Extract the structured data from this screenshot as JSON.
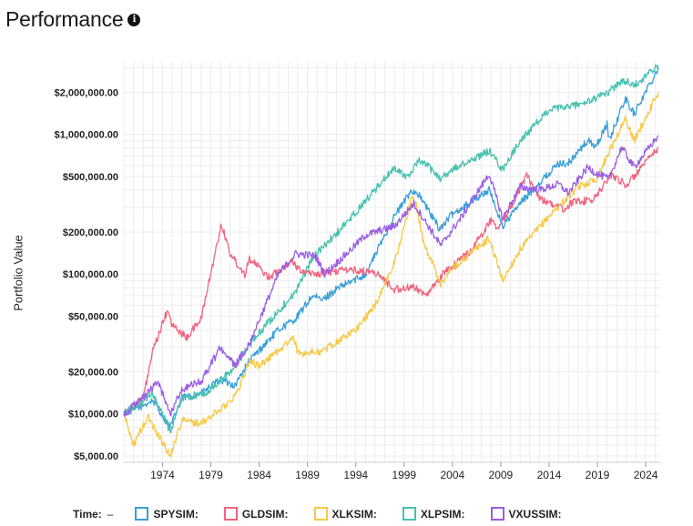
{
  "header": {
    "title": "Performance",
    "info_icon": "info-icon"
  },
  "legend": {
    "time_label": "Time:",
    "time_value": "–"
  },
  "chart_data": {
    "type": "line",
    "ylabel": "Portfolio Value",
    "yscale": "log",
    "ylim": [
      4500,
      3300000
    ],
    "xlim": [
      1970.0,
      2025.5
    ],
    "y_ticks": [
      {
        "value": 5000,
        "label": "$5,000.00"
      },
      {
        "value": 10000,
        "label": "$10,000.00"
      },
      {
        "value": 20000,
        "label": "$20,000.00"
      },
      {
        "value": 50000,
        "label": "$50,000.00"
      },
      {
        "value": 100000,
        "label": "$100,000.00"
      },
      {
        "value": 200000,
        "label": "$200,000.00"
      },
      {
        "value": 500000,
        "label": "$500,000.00"
      },
      {
        "value": 1000000,
        "label": "$1,000,000.00"
      },
      {
        "value": 2000000,
        "label": "$2,000,000.00"
      }
    ],
    "x_ticks": [
      1974,
      1979,
      1984,
      1989,
      1994,
      1999,
      2004,
      2009,
      2014,
      2019,
      2024
    ],
    "grid": true,
    "legend_position": "bottom",
    "series": [
      {
        "name": "SPYSIM:",
        "color": "#3a9fd8",
        "x": [
          1970,
          1972,
          1973,
          1974.8,
          1976,
          1978,
          1980,
          1981.5,
          1983,
          1986,
          1987.8,
          1989.5,
          1990.5,
          1992,
          1995,
          1998,
          1999.8,
          2000.5,
          2002.7,
          2004,
          2007.8,
          2009.2,
          2011,
          2013,
          2015,
          2016,
          2018,
          2018.9,
          2020,
          2020.2,
          2021.9,
          2022.8,
          2025.3
        ],
        "y": [
          10000,
          11500,
          12500,
          8000,
          13000,
          14000,
          17500,
          16000,
          24000,
          40000,
          48000,
          70000,
          65000,
          78000,
          100000,
          260000,
          400000,
          370000,
          210000,
          270000,
          400000,
          220000,
          320000,
          450000,
          620000,
          620000,
          900000,
          820000,
          1200000,
          900000,
          1800000,
          1400000,
          3000000
        ]
      },
      {
        "name": "GLDSIM:",
        "color": "#f0657f",
        "x": [
          1970,
          1972,
          1973,
          1974.5,
          1975,
          1976.5,
          1978,
          1980.1,
          1981,
          1982.5,
          1983,
          1985,
          1987.5,
          1988,
          1990,
          1993,
          1996,
          1998,
          2000,
          2001.5,
          2003,
          2006,
          2008,
          2008.8,
          2011.7,
          2013,
          2013.8,
          2015.5,
          2016.5,
          2018.5,
          2020.5,
          2022,
          2023,
          2025.3
        ],
        "y": [
          10000,
          13000,
          28000,
          55000,
          43000,
          35000,
          48000,
          230000,
          140000,
          100000,
          130000,
          95000,
          125000,
          108000,
          100000,
          108000,
          103000,
          78000,
          80000,
          72000,
          100000,
          150000,
          245000,
          210000,
          510000,
          350000,
          330000,
          290000,
          330000,
          335000,
          520000,
          430000,
          520000,
          800000
        ]
      },
      {
        "name": "XLKSIM:",
        "color": "#f7c948",
        "x": [
          1970,
          1971,
          1972.5,
          1974.8,
          1976,
          1978,
          1980.5,
          1981.7,
          1983,
          1984,
          1987.6,
          1988,
          1990.5,
          1994,
          1996,
          1998,
          1999.8,
          2000.2,
          2001,
          2002.8,
          2004,
          2007.8,
          2009.2,
          2011,
          2014,
          2017,
          2018.9,
          2020,
          2021.9,
          2022.8,
          2025.3
        ],
        "y": [
          10000,
          6000,
          9500,
          5000,
          9000,
          8500,
          11500,
          14000,
          24000,
          22000,
          35000,
          27000,
          28000,
          40000,
          60000,
          120000,
          350000,
          320000,
          170000,
          85000,
          110000,
          180000,
          90000,
          150000,
          260000,
          420000,
          480000,
          700000,
          1300000,
          900000,
          2000000
        ]
      },
      {
        "name": "XLPSIM:",
        "color": "#48c1b1",
        "x": [
          1970,
          1972,
          1973,
          1974.8,
          1976,
          1978.5,
          1981,
          1984,
          1987.8,
          1989.5,
          1993,
          1998,
          1999.5,
          2000.5,
          2001.5,
          2002.8,
          2004,
          2007.8,
          2009.2,
          2011,
          2014,
          2015.5,
          2018,
          2020.1,
          2021.5,
          2023,
          2025.3
        ],
        "y": [
          10000,
          12500,
          14000,
          7500,
          13000,
          14000,
          20000,
          38000,
          75000,
          130000,
          230000,
          580000,
          490000,
          650000,
          590000,
          480000,
          560000,
          760000,
          560000,
          900000,
          1500000,
          1550000,
          1700000,
          2000000,
          2400000,
          2300000,
          3100000
        ]
      },
      {
        "name": "VXUSSIM:",
        "color": "#9b5de5",
        "x": [
          1970,
          1972,
          1973.5,
          1974.8,
          1976,
          1978,
          1980,
          1981.5,
          1983,
          1986,
          1987.8,
          1989.8,
          1990.8,
          1993.5,
          1995,
          1998,
          2000,
          2002.8,
          2005,
          2007.8,
          2009.2,
          2011,
          2013,
          2015,
          2016,
          2018,
          2019,
          2020.2,
          2021.5,
          2022.8,
          2025.3
        ],
        "y": [
          10000,
          13000,
          17000,
          10000,
          15000,
          17000,
          30000,
          22000,
          32000,
          100000,
          140000,
          135000,
          100000,
          150000,
          190000,
          220000,
          320000,
          160000,
          260000,
          520000,
          250000,
          420000,
          400000,
          440000,
          380000,
          580000,
          520000,
          480000,
          810000,
          580000,
          980000
        ]
      }
    ]
  }
}
